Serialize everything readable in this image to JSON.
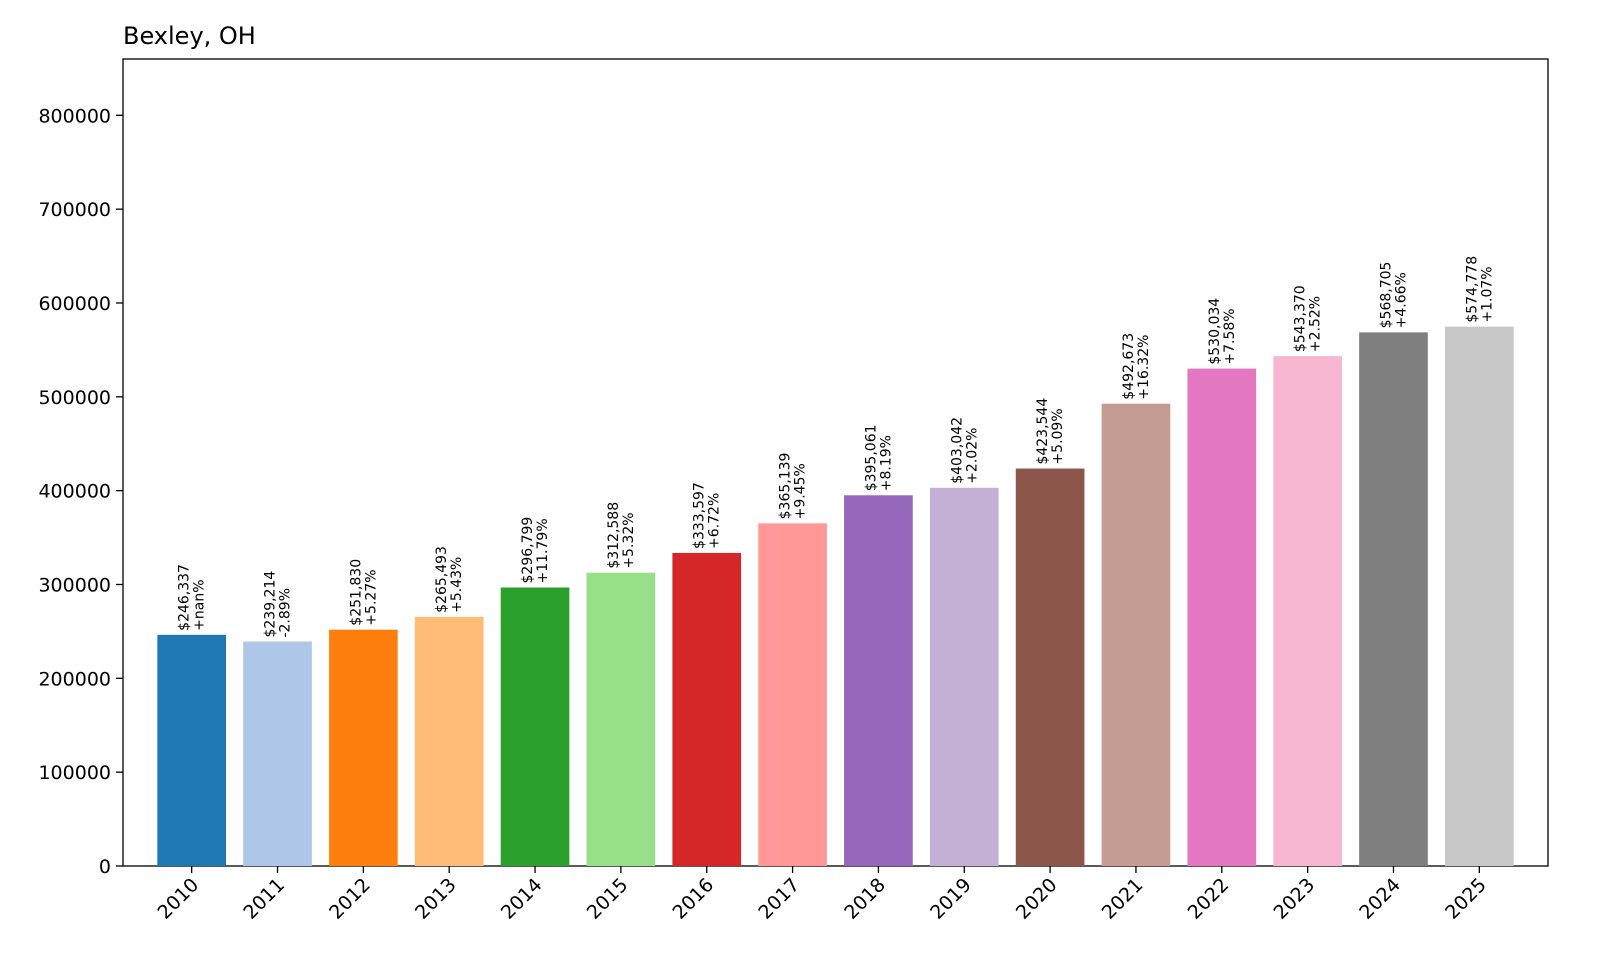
{
  "chart_data": {
    "type": "bar",
    "title": "Bexley, OH",
    "xlabel": "",
    "ylabel": "",
    "categories": [
      "2010",
      "2011",
      "2012",
      "2013",
      "2014",
      "2015",
      "2016",
      "2017",
      "2018",
      "2019",
      "2020",
      "2021",
      "2022",
      "2023",
      "2024",
      "2025"
    ],
    "values": [
      246337,
      239214,
      251830,
      265493,
      296799,
      312588,
      333597,
      365139,
      395061,
      403042,
      423544,
      492673,
      530034,
      543370,
      568705,
      574778
    ],
    "value_labels": [
      "$246,337",
      "$239,214",
      "$251,830",
      "$265,493",
      "$296,799",
      "$312,588",
      "$333,597",
      "$365,139",
      "$395,061",
      "$403,042",
      "$423,544",
      "$492,673",
      "$530,034",
      "$543,370",
      "$568,705",
      "$574,778"
    ],
    "change_labels": [
      "+nan%",
      "-2.89%",
      "+5.27%",
      "+5.43%",
      "+11.79%",
      "+5.32%",
      "+6.72%",
      "+9.45%",
      "+8.19%",
      "+2.02%",
      "+5.09%",
      "+16.32%",
      "+7.58%",
      "+2.52%",
      "+4.66%",
      "+1.07%"
    ],
    "colors": [
      "#1f77b4",
      "#aec7e8",
      "#ff7f0e",
      "#ffbb78",
      "#2ca02c",
      "#98df8a",
      "#d62728",
      "#ff9896",
      "#9467bd",
      "#c5b0d5",
      "#8c564b",
      "#c49c94",
      "#e377c2",
      "#f7b6d2",
      "#7f7f7f",
      "#c7c7c7"
    ],
    "ylim": [
      0,
      860000
    ],
    "yticks": [
      0,
      100000,
      200000,
      300000,
      400000,
      500000,
      600000,
      700000,
      800000
    ],
    "ytick_labels": [
      "0",
      "100000",
      "200000",
      "300000",
      "400000",
      "500000",
      "600000",
      "700000",
      "800000"
    ],
    "grid": false,
    "legend": false
  }
}
